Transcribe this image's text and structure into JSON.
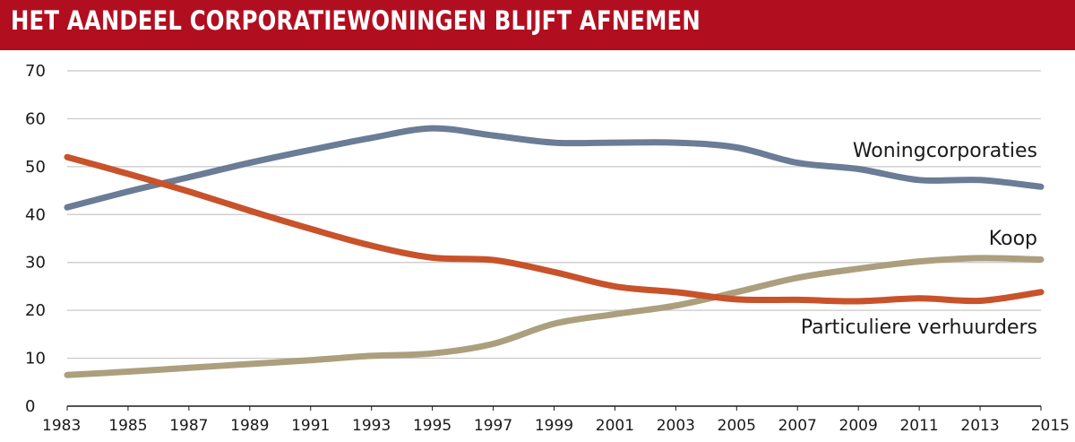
{
  "header": {
    "title": "HET AANDEEL CORPORATIEWONINGEN BLIJFT AFNEMEN"
  },
  "colors": {
    "banner": "#b10f20",
    "woningcorporaties": "#6a7c96",
    "particuliere": "#c8522a",
    "koop": "#ab9f7e",
    "grid": "#c8c8c8"
  },
  "chart_data": {
    "type": "line",
    "title": "HET AANDEEL CORPORATIEWONINGEN BLIJFT AFNEMEN",
    "xlabel": "",
    "ylabel": "",
    "ylim": [
      0,
      70
    ],
    "yticks": [
      0,
      10,
      20,
      30,
      40,
      50,
      60,
      70
    ],
    "xlim": [
      1983,
      2015
    ],
    "xticks": [
      1983,
      1985,
      1987,
      1989,
      1991,
      1993,
      1995,
      1997,
      1999,
      2001,
      2003,
      2005,
      2007,
      2009,
      2011,
      2013,
      2015
    ],
    "grid": true,
    "series": [
      {
        "name": "Woningcorporaties",
        "color": "#6a7c96",
        "x": [
          1983,
          1985,
          1987,
          1989,
          1991,
          1993,
          1995,
          1997,
          1999,
          2001,
          2003,
          2005,
          2007,
          2009,
          2011,
          2013,
          2015
        ],
        "values": [
          41.5,
          44.8,
          47.8,
          50.8,
          53.5,
          56.0,
          58.0,
          56.5,
          55.0,
          55.0,
          55.0,
          54.0,
          50.8,
          49.5,
          47.2,
          47.2,
          45.8
        ]
      },
      {
        "name": "Koop",
        "color": "#ab9f7e",
        "x": [
          1983,
          1985,
          1987,
          1989,
          1991,
          1993,
          1995,
          1997,
          1999,
          2001,
          2003,
          2005,
          2007,
          2009,
          2011,
          2013,
          2015
        ],
        "values": [
          6.5,
          7.2,
          8.0,
          8.8,
          9.6,
          10.5,
          11.0,
          13.0,
          17.2,
          19.2,
          21.0,
          23.8,
          26.8,
          28.7,
          30.2,
          30.9,
          30.6
        ]
      },
      {
        "name": "Particuliere verhuurders",
        "color": "#c8522a",
        "x": [
          1983,
          1985,
          1987,
          1989,
          1991,
          1993,
          1995,
          1997,
          1999,
          2001,
          2003,
          2005,
          2007,
          2009,
          2011,
          2013,
          2015
        ],
        "values": [
          52.0,
          48.5,
          44.8,
          40.8,
          37.0,
          33.5,
          31.0,
          30.5,
          28.0,
          25.0,
          23.8,
          22.3,
          22.2,
          21.9,
          22.5,
          22.0,
          23.8
        ]
      }
    ]
  }
}
